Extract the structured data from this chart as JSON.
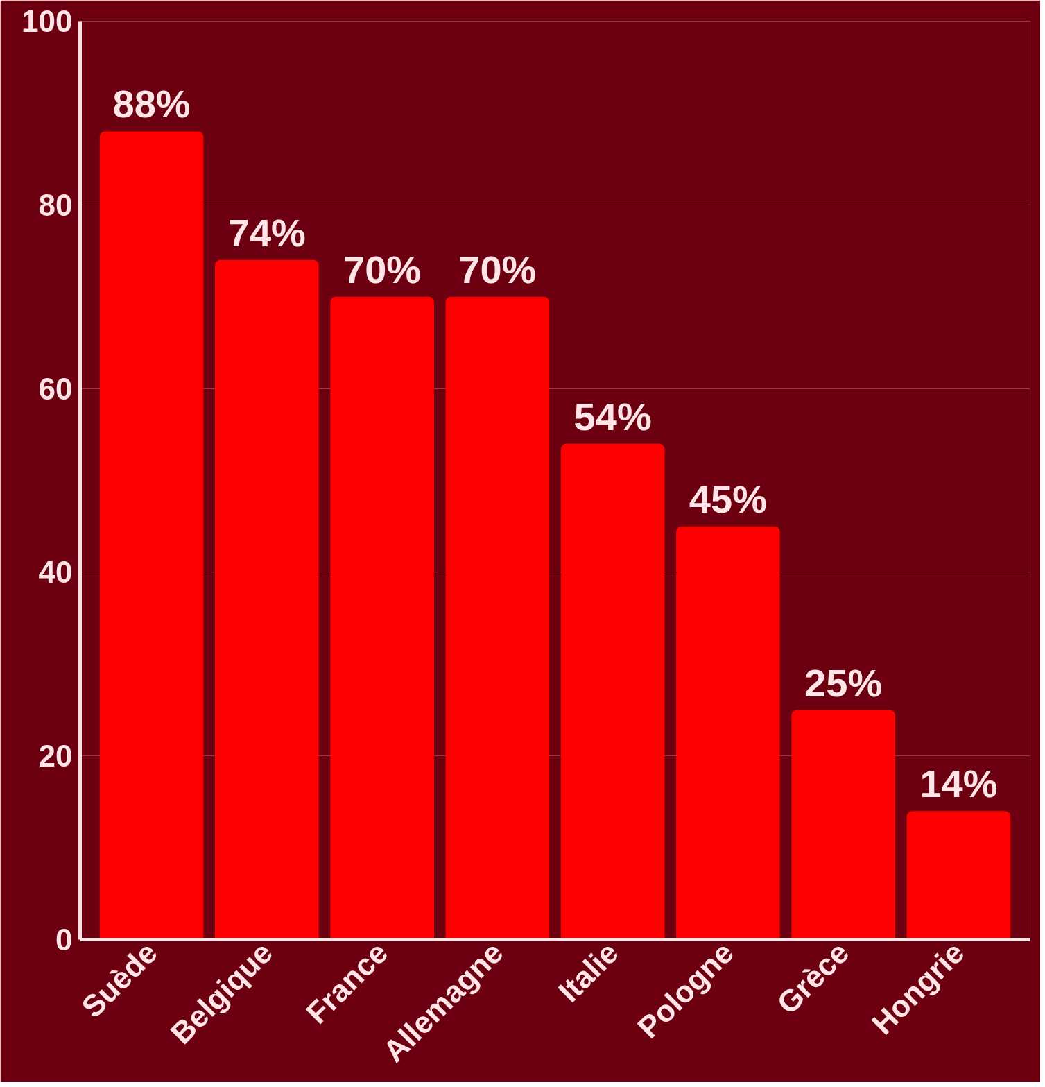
{
  "chart_data": {
    "type": "bar",
    "categories": [
      "Suède",
      "Belgique",
      "France",
      "Allemagne",
      "Italie",
      "Pologne",
      "Grèce",
      "Hongrie"
    ],
    "values": [
      88,
      74,
      70,
      70,
      54,
      45,
      25,
      14
    ],
    "value_labels": [
      "88%",
      "74%",
      "70%",
      "70%",
      "54%",
      "45%",
      "25%",
      "14%"
    ],
    "color": "#ff0000",
    "ylim": [
      0,
      100
    ],
    "yticks": [
      0,
      20,
      40,
      60,
      80,
      100
    ],
    "grid": "y"
  }
}
